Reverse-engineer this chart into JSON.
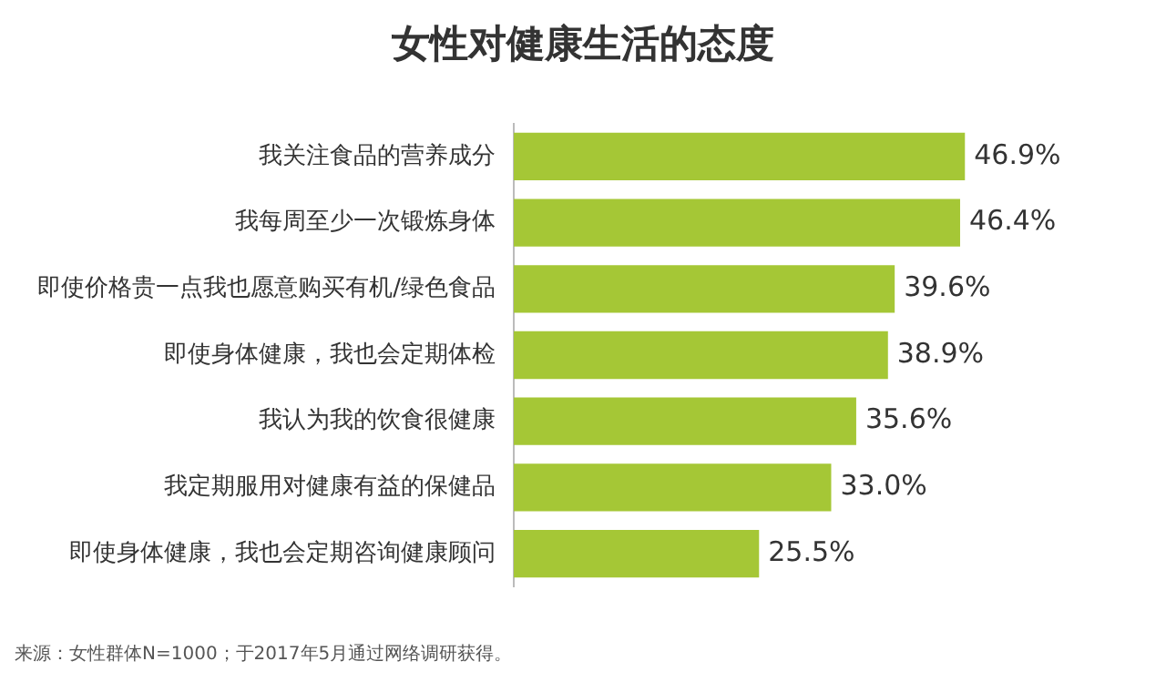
{
  "chart_data": {
    "type": "bar",
    "orientation": "horizontal",
    "title": "女性对健康生活的态度",
    "categories": [
      "我关注食品的营养成分",
      "我每周至少一次锻炼身体",
      "即使价格贵一点我也愿意购买有机/绿色食品",
      "即使身体健康，我也会定期体检",
      "我认为我的饮食很健康",
      "我定期服用对健康有益的保健品",
      "即使身体健康，我也会定期咨询健康顾问"
    ],
    "values": [
      46.9,
      46.4,
      39.6,
      38.9,
      35.6,
      33.0,
      25.5
    ],
    "value_labels": [
      "46.9%",
      "46.4%",
      "39.6%",
      "38.9%",
      "35.6%",
      "33.0%",
      "25.5%"
    ],
    "color": "#a5c736",
    "legend": false,
    "annotations": [
      "来源：女性群体N=1000；于2017年5月通过网络调研获得。"
    ]
  }
}
